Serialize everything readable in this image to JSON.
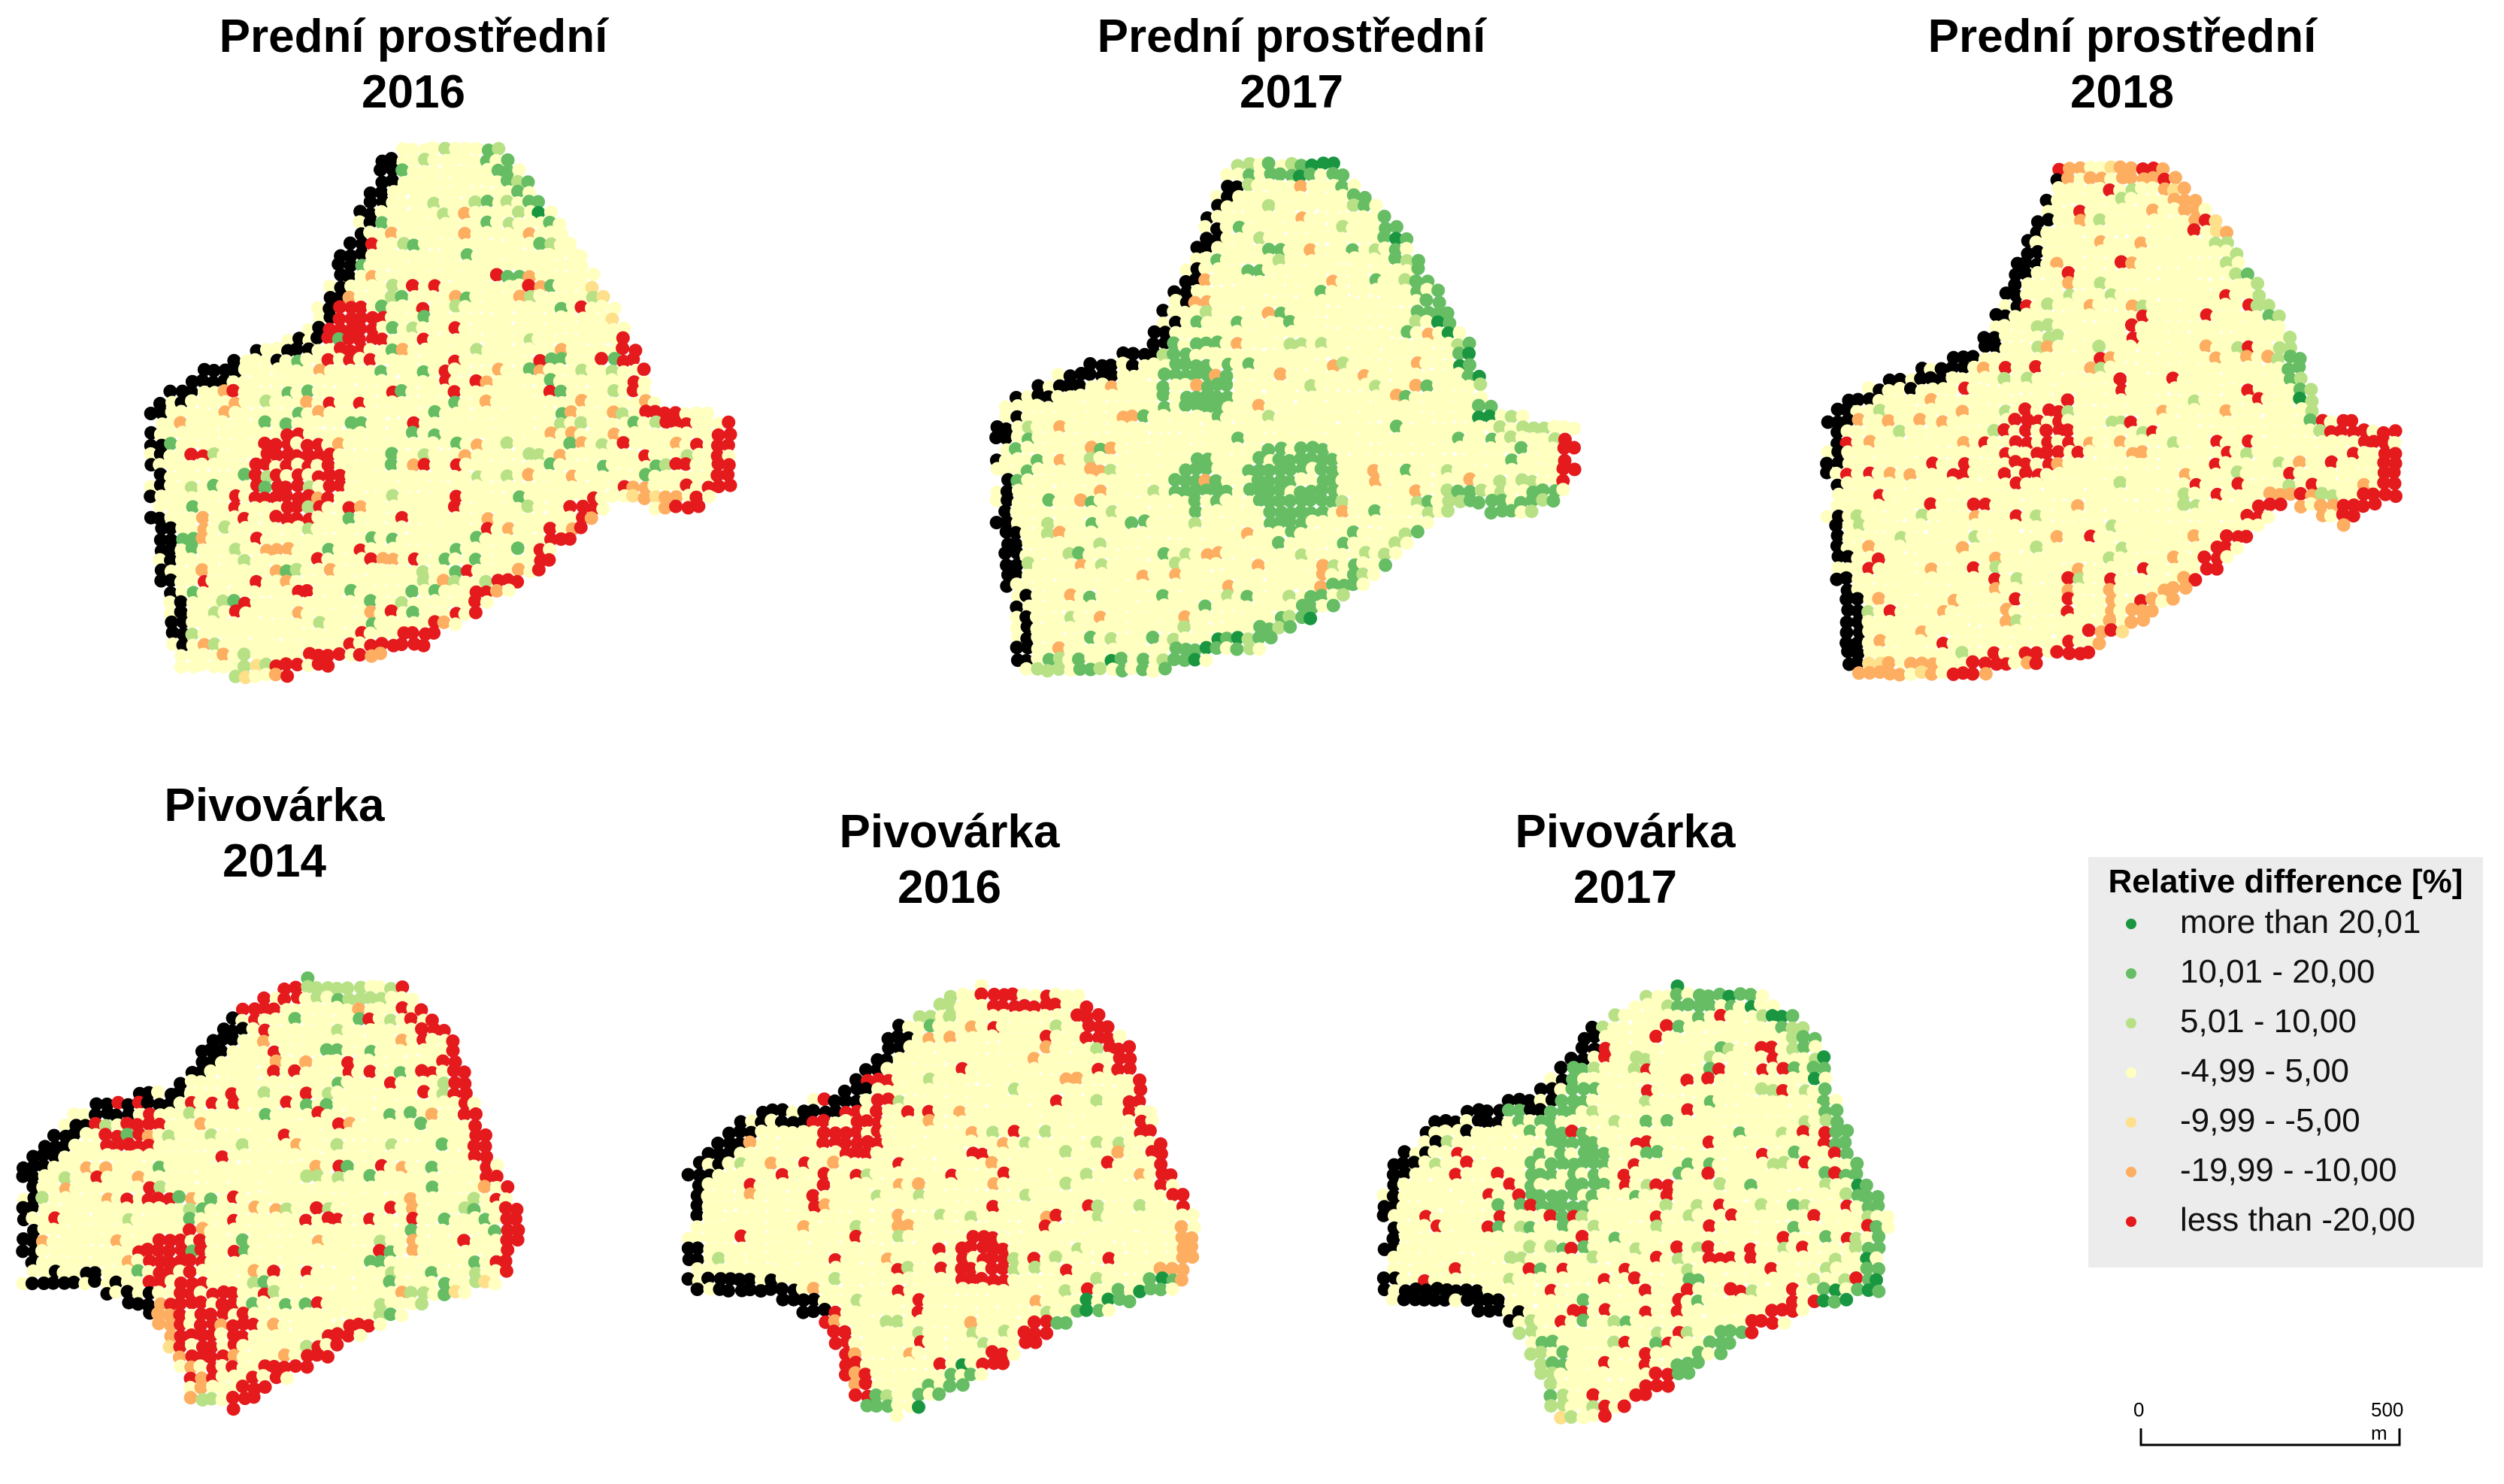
{
  "panels": [
    {
      "id": "pp2016",
      "title": "Prední prostřední",
      "year": "2016",
      "field": "predni",
      "edge": [
        3,
        1,
        3,
        6,
        7,
        7,
        6,
        5,
        6,
        6,
        6,
        3
      ],
      "blob": 6,
      "noise": [
        1,
        2,
        5,
        6
      ],
      "seed": 11
    },
    {
      "id": "pp2017",
      "title": "Prední prostřední",
      "year": "2017",
      "field": "predni",
      "edge": [
        1,
        1,
        1,
        1,
        2,
        7,
        1,
        1,
        2,
        1,
        1,
        2
      ],
      "blob": 1,
      "noise": [
        1,
        2,
        3,
        5
      ],
      "seed": 23
    },
    {
      "id": "pp2018",
      "title": "Prední prostřední",
      "year": "2018",
      "field": "predni",
      "edge": [
        5,
        5,
        2,
        1,
        7,
        7,
        7,
        5,
        7,
        5,
        6,
        5
      ],
      "blob": 7,
      "noise": [
        3,
        5,
        7,
        2
      ],
      "seed": 37
    },
    {
      "id": "pv2014",
      "title": "Pivovárka",
      "year": "2014",
      "field": "pivovarka",
      "edge": [
        7,
        2,
        7,
        7,
        7,
        7,
        3,
        2,
        7,
        7,
        2,
        5
      ],
      "blob": 7,
      "noise": [
        1,
        2,
        5,
        6,
        7
      ],
      "seed": 41
    },
    {
      "id": "pv2016",
      "title": "Pivovárka",
      "year": "2016",
      "field": "pivovarka",
      "edge": [
        2,
        7,
        7,
        6,
        7,
        5,
        1,
        1,
        7,
        1,
        1,
        6
      ],
      "blob": 7,
      "noise": [
        2,
        3,
        5,
        6
      ],
      "seed": 53
    },
    {
      "id": "pv2017",
      "title": "Pivovárka",
      "year": "2017",
      "field": "pivovarka",
      "edge": [
        3,
        1,
        1,
        1,
        1,
        1,
        1,
        7,
        1,
        7,
        3,
        2
      ],
      "blob": 1,
      "noise": [
        1,
        2,
        6,
        7
      ],
      "seed": 67
    }
  ],
  "legend": {
    "title": "Relative difference [%]",
    "items": [
      {
        "label": "more than 20,01",
        "color": "#1a9641"
      },
      {
        "label": "10,01 - 20,00",
        "color": "#66bd63"
      },
      {
        "label": "5,01 - 10,00",
        "color": "#b8e186"
      },
      {
        "label": "-4,99 - 5,00",
        "color": "#ffffbf"
      },
      {
        "label": "-9,99 - -5,00",
        "color": "#fee08b"
      },
      {
        "label": "-19,99 - -10,00",
        "color": "#fdae61"
      },
      {
        "label": "less than -20,00",
        "color": "#e41a1c"
      }
    ]
  },
  "scalebar": {
    "start_label": "0",
    "end_label": "500 m"
  }
}
